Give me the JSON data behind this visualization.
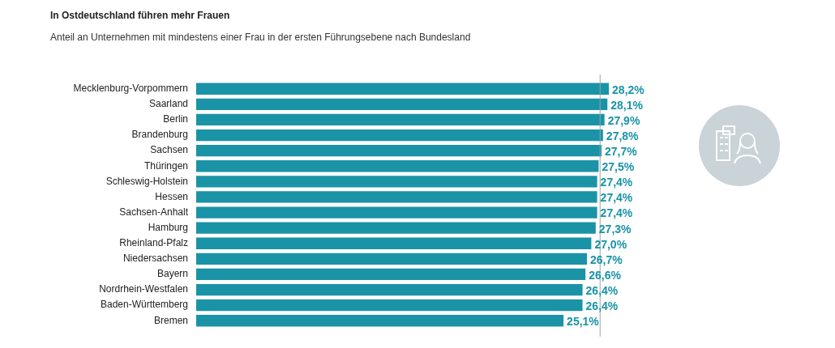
{
  "chart_data": {
    "type": "bar",
    "orientation": "horizontal",
    "title": "In Ostdeutschland führen mehr Frauen",
    "subtitle": "Anteil an Unternehmen mit mindestens einer Frau in der ersten Führungsebene nach Bundesland",
    "categories": [
      "Mecklenburg-Vorpommern",
      "Saarland",
      "Berlin",
      "Brandenburg",
      "Sachsen",
      "Thüringen",
      "Schleswig-Holstein",
      "Hessen",
      "Sachsen-Anhalt",
      "Hamburg",
      "Rheinland-Pfalz",
      "Niedersachsen",
      "Bayern",
      "Nordrhein-Westfalen",
      "Baden-Württemberg",
      "Bremen"
    ],
    "values": [
      28.2,
      28.1,
      27.9,
      27.8,
      27.7,
      27.5,
      27.4,
      27.4,
      27.4,
      27.3,
      27.0,
      26.7,
      26.6,
      26.4,
      26.4,
      25.1
    ],
    "value_labels": [
      "28,2%",
      "28,1%",
      "27,9%",
      "27,8%",
      "27,7%",
      "27,5%",
      "27,4%",
      "27,4%",
      "27,4%",
      "27,3%",
      "27,0%",
      "26,7%",
      "26,6%",
      "26,4%",
      "26,4%",
      "25,1%"
    ],
    "color": "#1a93a6",
    "ref_lines": [
      {
        "axis": "x",
        "value": 27.6,
        "color": "#9aa3a8"
      }
    ],
    "grid": false,
    "legend": false
  }
}
